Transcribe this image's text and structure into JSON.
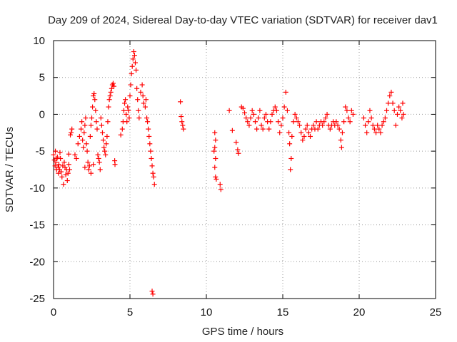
{
  "chart_data": {
    "type": "scatter",
    "title": "Day 209 of 2024, Sidereal Day-to-day VTEC variation (SDTVAR) for receiver dav1",
    "xlabel": "GPS time / hours",
    "ylabel": "SDTVAR / TECUs",
    "xlim": [
      0,
      25
    ],
    "ylim": [
      -25,
      10
    ],
    "xticks": [
      0,
      5,
      10,
      15,
      20,
      25
    ],
    "yticks": [
      -25,
      -20,
      -15,
      -10,
      -5,
      0,
      5,
      10
    ],
    "grid": true,
    "marker": "+",
    "series_color": "#ff0000",
    "series": [
      {
        "name": "SDTVAR",
        "points": [
          [
            0.0,
            -5.5
          ],
          [
            0.05,
            -6.2
          ],
          [
            0.1,
            -7.0
          ],
          [
            0.12,
            -5.0
          ],
          [
            0.15,
            -6.5
          ],
          [
            0.2,
            -7.5
          ],
          [
            0.22,
            -6.0
          ],
          [
            0.25,
            -5.8
          ],
          [
            0.3,
            -7.2
          ],
          [
            0.32,
            -8.0
          ],
          [
            0.35,
            -6.8
          ],
          [
            0.4,
            -7.5
          ],
          [
            0.42,
            -5.2
          ],
          [
            0.45,
            -6.0
          ],
          [
            0.5,
            -7.8
          ],
          [
            0.55,
            -8.5
          ],
          [
            0.6,
            -7.0
          ],
          [
            0.65,
            -9.5
          ],
          [
            0.7,
            -6.5
          ],
          [
            0.75,
            -7.2
          ],
          [
            0.8,
            -8.2
          ],
          [
            0.85,
            -7.5
          ],
          [
            0.9,
            -9.0
          ],
          [
            0.95,
            -8.0
          ],
          [
            1.0,
            -6.8
          ],
          [
            1.05,
            -7.5
          ],
          [
            1.0,
            -5.4
          ],
          [
            1.1,
            -2.8
          ],
          [
            1.15,
            -2.5
          ],
          [
            1.2,
            -2.0
          ],
          [
            1.4,
            -5.5
          ],
          [
            1.5,
            -6.0
          ],
          [
            1.6,
            -4.0
          ],
          [
            1.7,
            -3.0
          ],
          [
            1.8,
            -2.0
          ],
          [
            1.85,
            -1.0
          ],
          [
            1.9,
            -3.5
          ],
          [
            1.95,
            -4.5
          ],
          [
            2.0,
            -2.5
          ],
          [
            2.05,
            -1.5
          ],
          [
            2.1,
            -0.5
          ],
          [
            2.15,
            -4.0
          ],
          [
            2.2,
            -5.0
          ],
          [
            2.25,
            -6.5
          ],
          [
            2.3,
            -7.5
          ],
          [
            2.35,
            -7.0
          ],
          [
            2.4,
            -3.0
          ],
          [
            2.45,
            -1.5
          ],
          [
            2.5,
            -0.5
          ],
          [
            2.55,
            1.0
          ],
          [
            2.6,
            2.5
          ],
          [
            2.65,
            2.8
          ],
          [
            2.7,
            2.0
          ],
          [
            2.75,
            0.5
          ],
          [
            2.8,
            -1.0
          ],
          [
            2.85,
            -2.0
          ],
          [
            2.9,
            -5.5
          ],
          [
            2.95,
            -6.0
          ],
          [
            3.0,
            -6.5
          ],
          [
            3.05,
            -7.5
          ],
          [
            3.1,
            -0.5
          ],
          [
            3.15,
            -1.5
          ],
          [
            3.2,
            -2.5
          ],
          [
            3.25,
            -3.5
          ],
          [
            3.3,
            -4.5
          ],
          [
            3.35,
            -5.0
          ],
          [
            3.4,
            -5.5
          ],
          [
            3.45,
            -4.0
          ],
          [
            3.5,
            -3.0
          ],
          [
            3.55,
            -1.0
          ],
          [
            3.6,
            1.0
          ],
          [
            3.65,
            2.0
          ],
          [
            3.7,
            2.5
          ],
          [
            3.75,
            3.0
          ],
          [
            3.8,
            3.5
          ],
          [
            3.85,
            4.0
          ],
          [
            3.9,
            4.2
          ],
          [
            3.95,
            3.8
          ],
          [
            4.0,
            -6.3
          ],
          [
            4.02,
            -6.8
          ],
          [
            2.05,
            -7.2
          ],
          [
            2.45,
            -8.0
          ],
          [
            2.6,
            -6.8
          ],
          [
            4.4,
            -2.8
          ],
          [
            4.5,
            -2.0
          ],
          [
            4.55,
            -1.0
          ],
          [
            4.6,
            0.5
          ],
          [
            4.65,
            1.5
          ],
          [
            4.7,
            2.0
          ],
          [
            4.75,
            0.0
          ],
          [
            4.8,
            -1.0
          ],
          [
            4.85,
            1.0
          ],
          [
            4.9,
            0.5
          ],
          [
            4.95,
            -0.5
          ],
          [
            5.0,
            2.5
          ],
          [
            5.05,
            4.0
          ],
          [
            5.1,
            5.5
          ],
          [
            5.15,
            6.5
          ],
          [
            5.2,
            7.5
          ],
          [
            5.25,
            8.5
          ],
          [
            5.3,
            8.0
          ],
          [
            5.35,
            7.0
          ],
          [
            5.4,
            6.0
          ],
          [
            5.45,
            3.5
          ],
          [
            5.5,
            2.0
          ],
          [
            5.55,
            0.5
          ],
          [
            5.6,
            -0.5
          ],
          [
            5.7,
            3.0
          ],
          [
            5.8,
            4.0
          ],
          [
            5.85,
            2.5
          ],
          [
            5.9,
            1.5
          ],
          [
            6.0,
            1.0
          ],
          [
            6.05,
            2.0
          ],
          [
            6.1,
            -0.5
          ],
          [
            6.15,
            -1.0
          ],
          [
            6.2,
            -2.0
          ],
          [
            6.25,
            -3.0
          ],
          [
            6.3,
            -4.0
          ],
          [
            6.35,
            -5.0
          ],
          [
            6.4,
            -6.0
          ],
          [
            6.45,
            -7.0
          ],
          [
            6.5,
            -8.0
          ],
          [
            6.55,
            -8.5
          ],
          [
            6.6,
            -9.5
          ],
          [
            6.45,
            -24.0
          ],
          [
            6.5,
            -24.4
          ],
          [
            8.3,
            1.7
          ],
          [
            8.35,
            -0.3
          ],
          [
            8.4,
            -1.0
          ],
          [
            8.45,
            -1.5
          ],
          [
            8.5,
            -2.0
          ],
          [
            10.55,
            -2.5
          ],
          [
            10.6,
            -3.5
          ],
          [
            10.55,
            -4.5
          ],
          [
            10.5,
            -5.0
          ],
          [
            10.6,
            -6.0
          ],
          [
            10.55,
            -7.2
          ],
          [
            10.6,
            -8.5
          ],
          [
            10.65,
            -8.8
          ],
          [
            10.9,
            -9.5
          ],
          [
            10.95,
            -10.2
          ],
          [
            11.5,
            0.5
          ],
          [
            11.7,
            -2.2
          ],
          [
            11.95,
            -3.8
          ],
          [
            12.05,
            -4.8
          ],
          [
            12.1,
            -5.3
          ],
          [
            12.3,
            1.0
          ],
          [
            12.4,
            0.8
          ],
          [
            12.5,
            0.2
          ],
          [
            12.6,
            -0.5
          ],
          [
            12.7,
            -1.0
          ],
          [
            12.8,
            -1.5
          ],
          [
            12.9,
            -0.5
          ],
          [
            13.0,
            0.5
          ],
          [
            13.1,
            0.0
          ],
          [
            13.2,
            -1.0
          ],
          [
            13.3,
            -2.0
          ],
          [
            13.4,
            -0.5
          ],
          [
            13.5,
            0.5
          ],
          [
            13.6,
            -1.5
          ],
          [
            13.7,
            -2.0
          ],
          [
            13.8,
            -0.5
          ],
          [
            13.9,
            0.0
          ],
          [
            14.0,
            -1.0
          ],
          [
            14.1,
            -2.0
          ],
          [
            14.2,
            -1.0
          ],
          [
            14.3,
            0.0
          ],
          [
            14.4,
            0.5
          ],
          [
            14.5,
            1.0
          ],
          [
            14.6,
            0.5
          ],
          [
            14.7,
            -1.0
          ],
          [
            14.8,
            -2.5
          ],
          [
            14.9,
            -1.5
          ],
          [
            15.0,
            -0.5
          ],
          [
            15.1,
            1.0
          ],
          [
            15.2,
            3.0
          ],
          [
            15.3,
            0.5
          ],
          [
            15.4,
            -2.5
          ],
          [
            15.45,
            -4.0
          ],
          [
            15.5,
            -7.5
          ],
          [
            15.55,
            -6.0
          ],
          [
            15.6,
            -3.0
          ],
          [
            15.7,
            -1.0
          ],
          [
            15.8,
            0.0
          ],
          [
            15.9,
            -0.5
          ],
          [
            16.0,
            -1.0
          ],
          [
            16.1,
            -1.5
          ],
          [
            16.2,
            -2.5
          ],
          [
            16.3,
            -3.5
          ],
          [
            16.4,
            -3.0
          ],
          [
            16.5,
            -2.0
          ],
          [
            16.6,
            -1.5
          ],
          [
            16.7,
            -2.5
          ],
          [
            16.8,
            -3.0
          ],
          [
            16.9,
            -2.0
          ],
          [
            17.0,
            -1.5
          ],
          [
            17.1,
            -2.0
          ],
          [
            17.2,
            -1.0
          ],
          [
            17.3,
            -2.0
          ],
          [
            17.4,
            -1.5
          ],
          [
            17.5,
            -1.0
          ],
          [
            17.6,
            -1.5
          ],
          [
            17.7,
            -1.0
          ],
          [
            17.8,
            -0.5
          ],
          [
            17.9,
            0.0
          ],
          [
            18.0,
            -1.5
          ],
          [
            18.1,
            -2.0
          ],
          [
            18.2,
            -1.5
          ],
          [
            18.3,
            -1.0
          ],
          [
            18.4,
            -1.5
          ],
          [
            18.5,
            -1.0
          ],
          [
            18.6,
            -1.5
          ],
          [
            18.7,
            -2.0
          ],
          [
            18.8,
            -3.5
          ],
          [
            18.85,
            -4.5
          ],
          [
            18.9,
            -2.5
          ],
          [
            19.0,
            -1.0
          ],
          [
            19.1,
            1.0
          ],
          [
            19.2,
            0.5
          ],
          [
            19.3,
            -0.5
          ],
          [
            19.4,
            -1.0
          ],
          [
            19.5,
            0.5
          ],
          [
            19.6,
            0.0
          ],
          [
            20.3,
            -0.5
          ],
          [
            20.4,
            -1.5
          ],
          [
            20.5,
            -2.5
          ],
          [
            20.6,
            -1.0
          ],
          [
            20.7,
            0.5
          ],
          [
            20.8,
            -0.5
          ],
          [
            20.9,
            -1.5
          ],
          [
            21.0,
            -2.0
          ],
          [
            21.1,
            -2.5
          ],
          [
            21.2,
            -1.5
          ],
          [
            21.3,
            -2.0
          ],
          [
            21.4,
            -2.5
          ],
          [
            21.5,
            -1.5
          ],
          [
            21.6,
            -1.0
          ],
          [
            21.7,
            -0.5
          ],
          [
            21.8,
            0.5
          ],
          [
            21.9,
            1.5
          ],
          [
            22.0,
            2.5
          ],
          [
            22.1,
            3.0
          ],
          [
            22.2,
            1.5
          ],
          [
            22.3,
            0.5
          ],
          [
            22.4,
            -1.5
          ],
          [
            22.5,
            0.0
          ],
          [
            22.6,
            1.0
          ],
          [
            22.7,
            0.5
          ],
          [
            22.8,
            -0.5
          ],
          [
            22.85,
            1.5
          ],
          [
            22.9,
            0.0
          ]
        ]
      }
    ]
  }
}
